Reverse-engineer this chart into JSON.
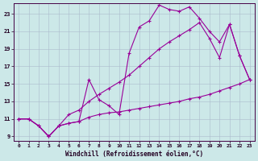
{
  "xlabel": "Windchill (Refroidissement éolien,°C)",
  "bg_color": "#cce8e8",
  "line_color": "#990099",
  "grid_color": "#aaccaa",
  "xlim": [
    -0.5,
    23.5
  ],
  "ylim": [
    8.5,
    24.2
  ],
  "xticks": [
    0,
    1,
    2,
    3,
    4,
    5,
    6,
    7,
    8,
    9,
    10,
    11,
    12,
    13,
    14,
    15,
    16,
    17,
    18,
    19,
    20,
    21,
    22,
    23
  ],
  "yticks": [
    9,
    11,
    13,
    15,
    17,
    19,
    21,
    23
  ],
  "line1_x": [
    0,
    1,
    2,
    3,
    4,
    5,
    6,
    7,
    8,
    9,
    10,
    11,
    12,
    13,
    14,
    15,
    16,
    17,
    18,
    19,
    20,
    21,
    22,
    23
  ],
  "line1_y": [
    11.0,
    11.0,
    10.2,
    9.0,
    10.2,
    10.5,
    10.7,
    11.2,
    11.5,
    11.7,
    11.8,
    12.0,
    12.2,
    12.4,
    12.6,
    12.8,
    13.0,
    13.3,
    13.5,
    13.8,
    14.2,
    14.6,
    15.0,
    15.5
  ],
  "line2_x": [
    0,
    1,
    2,
    3,
    4,
    5,
    6,
    7,
    8,
    9,
    10,
    11,
    12,
    13,
    14,
    15,
    16,
    17,
    18,
    19,
    20,
    21,
    22,
    23
  ],
  "line2_y": [
    11.0,
    11.0,
    10.2,
    9.0,
    10.2,
    10.5,
    10.7,
    15.5,
    13.2,
    12.5,
    11.5,
    18.5,
    21.5,
    22.2,
    24.0,
    23.5,
    23.3,
    23.8,
    22.5,
    21.0,
    19.8,
    21.8,
    18.2,
    15.5
  ],
  "line3_x": [
    0,
    1,
    2,
    3,
    4,
    5,
    6,
    7,
    8,
    9,
    10,
    11,
    12,
    13,
    14,
    15,
    16,
    17,
    18,
    19,
    20,
    21,
    22,
    23
  ],
  "line3_y": [
    11.0,
    11.0,
    10.2,
    9.0,
    10.2,
    11.5,
    12.0,
    13.0,
    13.8,
    14.5,
    15.2,
    16.0,
    17.0,
    18.0,
    19.0,
    19.8,
    20.5,
    21.2,
    22.0,
    20.2,
    18.0,
    21.8,
    18.2,
    15.5
  ]
}
